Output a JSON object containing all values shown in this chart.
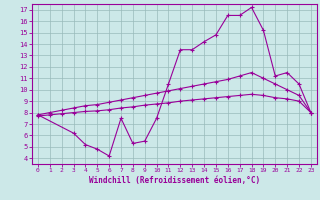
{
  "bg_color": "#cce8e8",
  "grid_color": "#99bbbb",
  "line_color": "#990099",
  "xlabel": "Windchill (Refroidissement éolien,°C)",
  "xlim": [
    -0.5,
    23.5
  ],
  "ylim": [
    3.5,
    17.5
  ],
  "xticks": [
    0,
    1,
    2,
    3,
    4,
    5,
    6,
    7,
    8,
    9,
    10,
    11,
    12,
    13,
    14,
    15,
    16,
    17,
    18,
    19,
    20,
    21,
    22,
    23
  ],
  "yticks": [
    4,
    5,
    6,
    7,
    8,
    9,
    10,
    11,
    12,
    13,
    14,
    15,
    16,
    17
  ],
  "line1_x": [
    0,
    1,
    2,
    3,
    4,
    5,
    6,
    7,
    8,
    9,
    10,
    11,
    12,
    13,
    14,
    15,
    16,
    17,
    18,
    19,
    20,
    21,
    22,
    23
  ],
  "line1_y": [
    7.8,
    8.0,
    8.2,
    8.4,
    8.6,
    8.7,
    8.9,
    9.1,
    9.3,
    9.5,
    9.7,
    9.9,
    10.1,
    10.3,
    10.5,
    10.7,
    10.9,
    11.2,
    11.5,
    11.0,
    10.5,
    10.0,
    9.5,
    8.0
  ],
  "line2_x": [
    0,
    1,
    2,
    3,
    4,
    5,
    6,
    7,
    8,
    9,
    10,
    11,
    12,
    13,
    14,
    15,
    16,
    17,
    18,
    19,
    20,
    21,
    22,
    23
  ],
  "line2_y": [
    7.7,
    7.8,
    7.9,
    8.0,
    8.1,
    8.15,
    8.25,
    8.4,
    8.5,
    8.65,
    8.75,
    8.85,
    9.0,
    9.1,
    9.2,
    9.3,
    9.4,
    9.5,
    9.6,
    9.5,
    9.3,
    9.2,
    9.0,
    8.0
  ],
  "line3_x": [
    0,
    3,
    4,
    5,
    6,
    7,
    8,
    9,
    10,
    11,
    12,
    13,
    14,
    15,
    16,
    17,
    18,
    19,
    20,
    21,
    22,
    23
  ],
  "line3_y": [
    7.8,
    6.2,
    5.2,
    4.8,
    4.2,
    7.5,
    5.3,
    5.5,
    7.5,
    10.5,
    13.5,
    13.5,
    14.2,
    14.8,
    16.5,
    16.5,
    17.2,
    15.2,
    11.2,
    11.5,
    10.5,
    8.0
  ]
}
